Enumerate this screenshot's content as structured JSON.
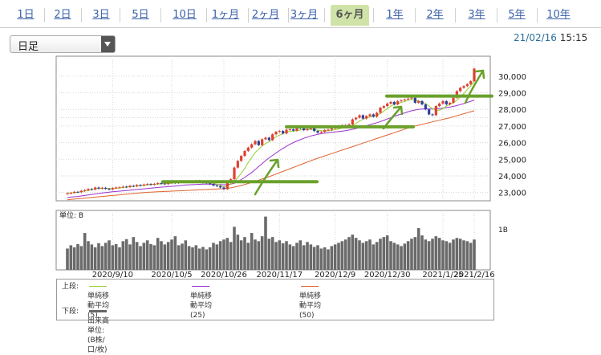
{
  "tabs": [
    {
      "label": "1日",
      "active": false
    },
    {
      "label": "2日",
      "active": false
    },
    {
      "label": "3日",
      "active": false
    },
    {
      "label": "5日",
      "active": false
    },
    {
      "label": "10日",
      "active": false
    },
    {
      "label": "1ヶ月",
      "active": false
    },
    {
      "label": "2ヶ月",
      "active": false
    },
    {
      "label": "3ヶ月",
      "active": false
    },
    {
      "label": "6ヶ月",
      "active": true
    },
    {
      "label": "1年",
      "active": false
    },
    {
      "label": "2年",
      "active": false
    },
    {
      "label": "3年",
      "active": false
    },
    {
      "label": "5年",
      "active": false
    },
    {
      "label": "10年",
      "active": false
    }
  ],
  "select": {
    "value": "日足"
  },
  "timestamp": {
    "date": "21/02/16",
    "time": "15:15"
  },
  "legend": {
    "upper_label": "上段:",
    "lower_label": "下段:",
    "upper_items": [
      {
        "label": "単純移動平均(5)",
        "color": "#9acd32"
      },
      {
        "label": "単純移動平均(25)",
        "color": "#9932cc"
      },
      {
        "label": "単純移動平均(50)",
        "color": "#e0622d"
      }
    ],
    "lower_item": {
      "label": "出来高 単位:(B株/口/枚)",
      "color": "#666666"
    }
  },
  "chart_data": {
    "type": "candlestick",
    "price_axis": {
      "ticks": [
        "30,000",
        "29,000",
        "28,000",
        "27,000",
        "26,000",
        "25,000",
        "24,000",
        "23,000"
      ],
      "ylim": [
        22500,
        31200
      ]
    },
    "volume_axis": {
      "label": "単位: B",
      "ticks": [
        "1B"
      ]
    },
    "x_ticks": [
      "2020/9/10",
      "2020/10/5",
      "2020/10/26",
      "2020/11/17",
      "2020/12/9",
      "2020/12/30",
      "2021/1/25",
      "2021/2/16"
    ],
    "annotation": "hand-drawn green support lines and upward arrows",
    "close": [
      22950,
      22980,
      23040,
      23020,
      23100,
      23140,
      23210,
      23180,
      23300,
      23240,
      23280,
      23220,
      23180,
      23260,
      23300,
      23310,
      23350,
      23320,
      23400,
      23380,
      23450,
      23420,
      23480,
      23510,
      23470,
      23520,
      23560,
      23540,
      23500,
      23580,
      23610,
      23570,
      23630,
      23680,
      23650,
      23620,
      23670,
      23700,
      23640,
      23600,
      23560,
      23500,
      23420,
      23380,
      23300,
      23200,
      23600,
      23800,
      24500,
      24900,
      25200,
      25500,
      25700,
      25900,
      26100,
      25850,
      26200,
      26300,
      26150,
      26500,
      26650,
      26700,
      26550,
      26780,
      26800,
      26720,
      26900,
      26850,
      26750,
      26820,
      26900,
      26700,
      26600,
      26650,
      26750,
      26780,
      26850,
      26900,
      27000,
      27050,
      26950,
      27100,
      27400,
      27500,
      27650,
      27450,
      27600,
      27700,
      27560,
      27800,
      28100,
      28200,
      28350,
      28450,
      28300,
      28500,
      28550,
      28600,
      28650,
      28700,
      28400,
      28500,
      28300,
      28000,
      27700,
      27650,
      28200,
      28350,
      28500,
      28300,
      28400,
      28700,
      29100,
      29300,
      29400,
      29520,
      29700,
      30450
    ],
    "sma5": [
      22960,
      22975,
      23000,
      23010,
      23040,
      23090,
      23130,
      23160,
      23220,
      23240,
      23260,
      23250,
      23240,
      23240,
      23250,
      23270,
      23300,
      23320,
      23350,
      23370,
      23390,
      23410,
      23440,
      23460,
      23470,
      23490,
      23510,
      23520,
      23530,
      23540,
      23560,
      23580,
      23600,
      23620,
      23630,
      23640,
      23650,
      23660,
      23660,
      23640,
      23620,
      23590,
      23550,
      23500,
      23420,
      23330,
      23400,
      23500,
      23650,
      23900,
      24150,
      24450,
      24800,
      25100,
      25400,
      25600,
      25800,
      25950,
      26050,
      26200,
      26350,
      26450,
      26550,
      26630,
      26680,
      26700,
      26720,
      26760,
      26780,
      26800,
      26800,
      26780,
      26750,
      26720,
      26700,
      26710,
      26730,
      26780,
      26820,
      26880,
      26920,
      26960,
      27050,
      27150,
      27300,
      27400,
      27500,
      27550,
      27600,
      27650,
      27750,
      27900,
      28050,
      28200,
      28300,
      28350,
      28420,
      28480,
      28550,
      28600,
      28550,
      28500,
      28450,
      28350,
      28200,
      28050,
      27950,
      27950,
      28050,
      28200,
      28300,
      28400,
      28550,
      28750,
      28950,
      29200,
      29400,
      29700
    ],
    "sma25": [
      22700,
      22720,
      22740,
      22760,
      22790,
      22820,
      22850,
      22880,
      22910,
      22940,
      22970,
      23000,
      23020,
      23040,
      23060,
      23080,
      23100,
      23120,
      23140,
      23160,
      23180,
      23200,
      23220,
      23240,
      23260,
      23280,
      23300,
      23320,
      23330,
      23350,
      23370,
      23390,
      23410,
      23430,
      23450,
      23460,
      23470,
      23480,
      23490,
      23500,
      23500,
      23500,
      23490,
      23480,
      23470,
      23460,
      23470,
      23500,
      23560,
      23650,
      23780,
      23900,
      24050,
      24200,
      24380,
      24560,
      24740,
      24920,
      25080,
      25230,
      25380,
      25520,
      25650,
      25780,
      25900,
      26000,
      26100,
      26180,
      26260,
      26330,
      26400,
      26450,
      26500,
      26540,
      26570,
      26600,
      26620,
      26640,
      26660,
      26690,
      26720,
      26760,
      26800,
      26850,
      26900,
      26960,
      27020,
      27080,
      27140,
      27200,
      27270,
      27340,
      27420,
      27500,
      27580,
      27650,
      27720,
      27790,
      27860,
      27920,
      27960,
      28000,
      28020,
      28030,
      28030,
      28020,
      28030,
      28050,
      28080,
      28110,
      28140,
      28180,
      28230,
      28290,
      28350,
      28420,
      28490,
      28560
    ],
    "sma50": [
      22560,
      22580,
      22600,
      22620,
      22640,
      22660,
      22680,
      22700,
      22720,
      22740,
      22760,
      22780,
      22800,
      22820,
      22840,
      22860,
      22880,
      22900,
      22920,
      22940,
      22960,
      22980,
      23000,
      23010,
      23020,
      23030,
      23040,
      23050,
      23060,
      23070,
      23080,
      23090,
      23100,
      23110,
      23120,
      23130,
      23140,
      23150,
      23160,
      23170,
      23180,
      23190,
      23200,
      23210,
      23220,
      23230,
      23250,
      23280,
      23320,
      23370,
      23420,
      23480,
      23540,
      23600,
      23670,
      23740,
      23810,
      23880,
      23950,
      24030,
      24110,
      24190,
      24270,
      24350,
      24430,
      24510,
      24590,
      24670,
      24750,
      24830,
      24910,
      24990,
      25060,
      25130,
      25200,
      25270,
      25340,
      25410,
      25480,
      25550,
      25620,
      25690,
      25760,
      25830,
      25900,
      25970,
      26040,
      26110,
      26180,
      26250,
      26320,
      26390,
      26460,
      26530,
      26600,
      26670,
      26740,
      26810,
      26880,
      26950,
      27000,
      27050,
      27100,
      27150,
      27200,
      27250,
      27300,
      27350,
      27400,
      27450,
      27500,
      27560,
      27620,
      27680,
      27740,
      27800,
      27860,
      27920
    ],
    "volume": [
      0.52,
      0.6,
      0.55,
      0.63,
      0.58,
      0.9,
      0.7,
      0.62,
      0.55,
      0.65,
      0.58,
      0.66,
      0.72,
      0.6,
      0.63,
      0.55,
      0.7,
      0.75,
      0.62,
      0.8,
      0.68,
      0.58,
      0.66,
      0.72,
      0.63,
      0.6,
      0.78,
      0.7,
      0.62,
      0.68,
      0.74,
      0.82,
      0.6,
      0.64,
      0.72,
      0.58,
      0.55,
      0.6,
      0.52,
      0.56,
      0.5,
      0.55,
      0.66,
      0.62,
      0.7,
      0.74,
      0.78,
      0.68,
      1.05,
      0.86,
      0.72,
      0.8,
      0.66,
      0.9,
      0.74,
      0.7,
      0.82,
      1.3,
      0.76,
      0.8,
      0.68,
      0.72,
      0.65,
      0.7,
      0.62,
      0.58,
      0.66,
      0.72,
      0.6,
      0.68,
      0.62,
      0.56,
      0.6,
      0.52,
      0.55,
      0.5,
      0.58,
      0.62,
      0.66,
      0.7,
      0.74,
      0.8,
      0.86,
      0.78,
      0.72,
      0.66,
      0.7,
      0.74,
      0.62,
      0.68,
      0.76,
      0.8,
      0.84,
      0.7,
      0.66,
      0.62,
      0.58,
      0.64,
      0.7,
      0.76,
      0.8,
      1.02,
      0.84,
      0.74,
      0.7,
      0.76,
      0.82,
      0.78,
      0.72,
      0.7,
      0.66,
      0.74,
      0.78,
      0.76,
      0.72,
      0.7,
      0.66,
      0.74
    ]
  }
}
